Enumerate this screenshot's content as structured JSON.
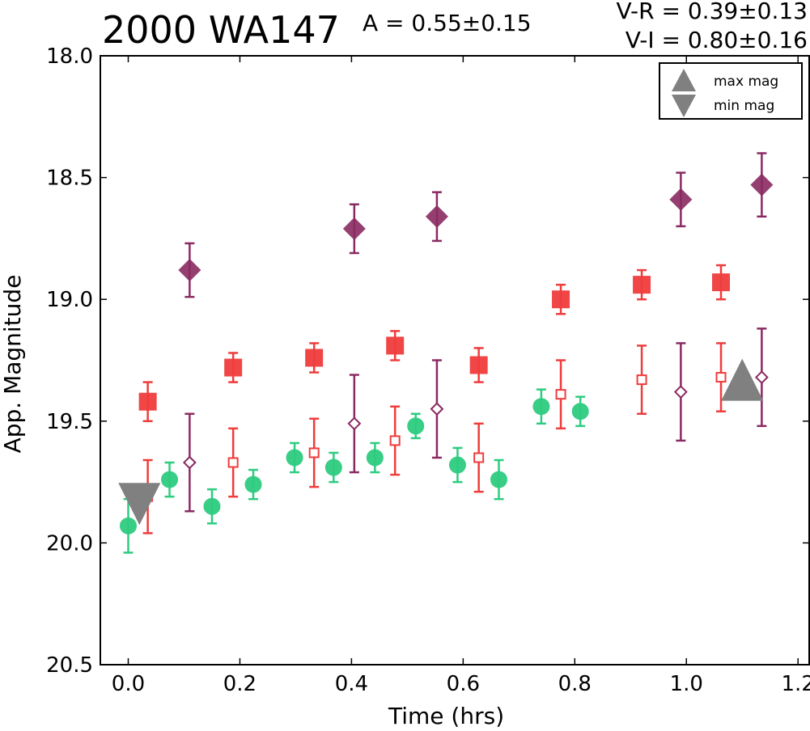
{
  "header": {
    "title": "2000 WA147",
    "amplitude": "A  = 0.55±0.15",
    "v_r": "V-R = 0.39±0.13",
    "v_i": "V-I  = 0.80±0.16"
  },
  "chart_data": {
    "type": "scatter",
    "xlabel": "Time (hrs)",
    "ylabel": "App. Magnitude",
    "xlim": [
      -0.05,
      1.22
    ],
    "ylim": [
      20.5,
      18.0
    ],
    "y_inverted": true,
    "x_ticks": [
      "0.0",
      "0.2",
      "0.4",
      "0.6",
      "0.8",
      "1.0",
      "1.2"
    ],
    "y_ticks": [
      "18.0",
      "18.5",
      "19.0",
      "19.5",
      "20.0",
      "20.5"
    ],
    "grid": false,
    "legend": {
      "placement": "top-right",
      "entries": [
        {
          "label": "max mag",
          "marker": "triangle-up",
          "color": "#808080"
        },
        {
          "label": "min mag",
          "marker": "triangle-down",
          "color": "#808080"
        }
      ]
    },
    "series": [
      {
        "marker": "circle-filled",
        "color": "#2ecc80",
        "points": [
          {
            "x": 0.0,
            "y": 19.93,
            "err": 0.11
          },
          {
            "x": 0.074,
            "y": 19.74,
            "err": 0.07
          },
          {
            "x": 0.15,
            "y": 19.85,
            "err": 0.07
          },
          {
            "x": 0.224,
            "y": 19.76,
            "err": 0.06
          },
          {
            "x": 0.298,
            "y": 19.65,
            "err": 0.06
          },
          {
            "x": 0.368,
            "y": 19.69,
            "err": 0.06
          },
          {
            "x": 0.442,
            "y": 19.65,
            "err": 0.06
          },
          {
            "x": 0.515,
            "y": 19.52,
            "err": 0.05
          },
          {
            "x": 0.59,
            "y": 19.68,
            "err": 0.07
          },
          {
            "x": 0.664,
            "y": 19.74,
            "err": 0.08
          },
          {
            "x": 0.74,
            "y": 19.44,
            "err": 0.07
          },
          {
            "x": 0.81,
            "y": 19.46,
            "err": 0.06
          }
        ]
      },
      {
        "marker": "square-filled",
        "color": "#ef3c3c",
        "points": [
          {
            "x": 0.035,
            "y": 19.42,
            "err": 0.08
          },
          {
            "x": 0.188,
            "y": 19.28,
            "err": 0.06
          },
          {
            "x": 0.333,
            "y": 19.24,
            "err": 0.06
          },
          {
            "x": 0.478,
            "y": 19.19,
            "err": 0.06
          },
          {
            "x": 0.628,
            "y": 19.27,
            "err": 0.07
          },
          {
            "x": 0.775,
            "y": 19.0,
            "err": 0.06
          },
          {
            "x": 0.92,
            "y": 18.94,
            "err": 0.06
          },
          {
            "x": 1.062,
            "y": 18.93,
            "err": 0.07
          }
        ]
      },
      {
        "marker": "square-open",
        "color": "#ef3c3c",
        "points": [
          {
            "x": 0.035,
            "y": 19.81,
            "err": 0.15
          },
          {
            "x": 0.188,
            "y": 19.67,
            "err": 0.14
          },
          {
            "x": 0.333,
            "y": 19.63,
            "err": 0.14
          },
          {
            "x": 0.478,
            "y": 19.58,
            "err": 0.14
          },
          {
            "x": 0.628,
            "y": 19.65,
            "err": 0.14
          },
          {
            "x": 0.775,
            "y": 19.39,
            "err": 0.14
          },
          {
            "x": 0.92,
            "y": 19.33,
            "err": 0.14
          },
          {
            "x": 1.062,
            "y": 19.32,
            "err": 0.14
          }
        ]
      },
      {
        "marker": "diamond-filled",
        "color": "#8a2a62",
        "points": [
          {
            "x": 0.11,
            "y": 18.88,
            "err": 0.11
          },
          {
            "x": 0.405,
            "y": 18.71,
            "err": 0.1
          },
          {
            "x": 0.553,
            "y": 18.66,
            "err": 0.1
          },
          {
            "x": 0.99,
            "y": 18.59,
            "err": 0.11
          },
          {
            "x": 1.135,
            "y": 18.53,
            "err": 0.13
          }
        ]
      },
      {
        "marker": "diamond-open",
        "color": "#8a2a62",
        "points": [
          {
            "x": 0.11,
            "y": 19.67,
            "err": 0.2
          },
          {
            "x": 0.405,
            "y": 19.51,
            "err": 0.2
          },
          {
            "x": 0.553,
            "y": 19.45,
            "err": 0.2
          },
          {
            "x": 0.99,
            "y": 19.38,
            "err": 0.2
          },
          {
            "x": 1.135,
            "y": 19.32,
            "err": 0.2
          }
        ]
      }
    ],
    "extremes": [
      {
        "type": "max",
        "marker": "triangle-up",
        "color": "#808080",
        "x": 1.1,
        "y": 19.33
      },
      {
        "type": "min",
        "marker": "triangle-down",
        "color": "#808080",
        "x": 0.02,
        "y": 19.84
      }
    ]
  }
}
